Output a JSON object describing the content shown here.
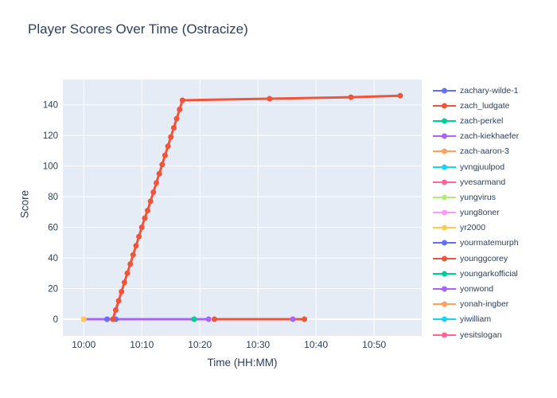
{
  "chart_data": {
    "type": "line",
    "title": "Player Scores Over Time (Ostracize)",
    "xlabel": "Time (HH:MM)",
    "ylabel": "Score",
    "x_ticks": [
      "10:00",
      "10:10",
      "10:20",
      "10:30",
      "10:40",
      "10:50"
    ],
    "y_ticks": [
      0,
      20,
      40,
      60,
      80,
      100,
      120,
      140
    ],
    "x_range_minutes": [
      -3.6,
      58.2
    ],
    "y_range": [
      -10.9,
      156.5
    ],
    "grid": true,
    "legend_position": "right",
    "plot_bg": "#E5ECF6",
    "grid_color": "#ffffff",
    "text_color": "#2a3f5f",
    "series": [
      {
        "name": "zachary-wilde-1",
        "color": "#636EFA",
        "points": [
          [
            "10:04:00",
            0
          ],
          [
            "10:05:30",
            0
          ]
        ]
      },
      {
        "name": "zach_ludgate",
        "color": "#EF553B",
        "points": [
          [
            "10:05:00",
            0
          ],
          [
            "10:05:30",
            6
          ],
          [
            "10:06:00",
            12
          ],
          [
            "10:06:30",
            18
          ],
          [
            "10:07:00",
            24
          ],
          [
            "10:07:30",
            30
          ],
          [
            "10:08:00",
            36
          ],
          [
            "10:08:30",
            42
          ],
          [
            "10:09:00",
            48
          ],
          [
            "10:09:30",
            54
          ],
          [
            "10:10:00",
            60
          ],
          [
            "10:10:30",
            66
          ],
          [
            "10:11:00",
            71
          ],
          [
            "10:11:30",
            77
          ],
          [
            "10:12:00",
            83
          ],
          [
            "10:12:30",
            89
          ],
          [
            "10:13:00",
            95
          ],
          [
            "10:13:30",
            101
          ],
          [
            "10:14:00",
            107
          ],
          [
            "10:14:30",
            113
          ],
          [
            "10:15:00",
            119
          ],
          [
            "10:15:30",
            125
          ],
          [
            "10:16:00",
            131
          ],
          [
            "10:16:30",
            137
          ],
          [
            "10:17:00",
            143
          ],
          [
            "10:32:00",
            144
          ],
          [
            "10:46:00",
            145
          ],
          [
            "10:54:30",
            146
          ]
        ]
      },
      {
        "name": "zach-perkel",
        "color": "#00CC96",
        "points": [
          [
            "10:19:00",
            0
          ]
        ]
      },
      {
        "name": "zach-kiekhaefer",
        "color": "#AB63FA",
        "points": [
          [
            "10:00:00",
            0
          ],
          [
            "10:21:30",
            0
          ]
        ]
      },
      {
        "name": "zach-aaron-3",
        "color": "#FFA15A",
        "points": []
      },
      {
        "name": "yvngjuulpod",
        "color": "#19D3F3",
        "points": []
      },
      {
        "name": "yvesarmand",
        "color": "#FF6692",
        "points": []
      },
      {
        "name": "yungvirus",
        "color": "#B6E880",
        "points": []
      },
      {
        "name": "yung8oner",
        "color": "#FF97FF",
        "points": []
      },
      {
        "name": "yr2000",
        "color": "#FECB52",
        "points": [
          [
            "10:00:00",
            0
          ]
        ]
      },
      {
        "name": "yourmatemurph",
        "color": "#636EFA",
        "points": []
      },
      {
        "name": "younggcorey",
        "color": "#EF553B",
        "points": [
          [
            "10:22:30",
            0
          ],
          [
            "10:38:00",
            0
          ]
        ]
      },
      {
        "name": "youngarkofficial",
        "color": "#00CC96",
        "points": []
      },
      {
        "name": "yonwond",
        "color": "#AB63FA",
        "points": [
          [
            "10:36:00",
            0
          ]
        ]
      },
      {
        "name": "yonah-ingber",
        "color": "#FFA15A",
        "points": []
      },
      {
        "name": "yiwilliam",
        "color": "#19D3F3",
        "points": []
      },
      {
        "name": "yesitslogan",
        "color": "#FF6692",
        "points": []
      }
    ]
  }
}
